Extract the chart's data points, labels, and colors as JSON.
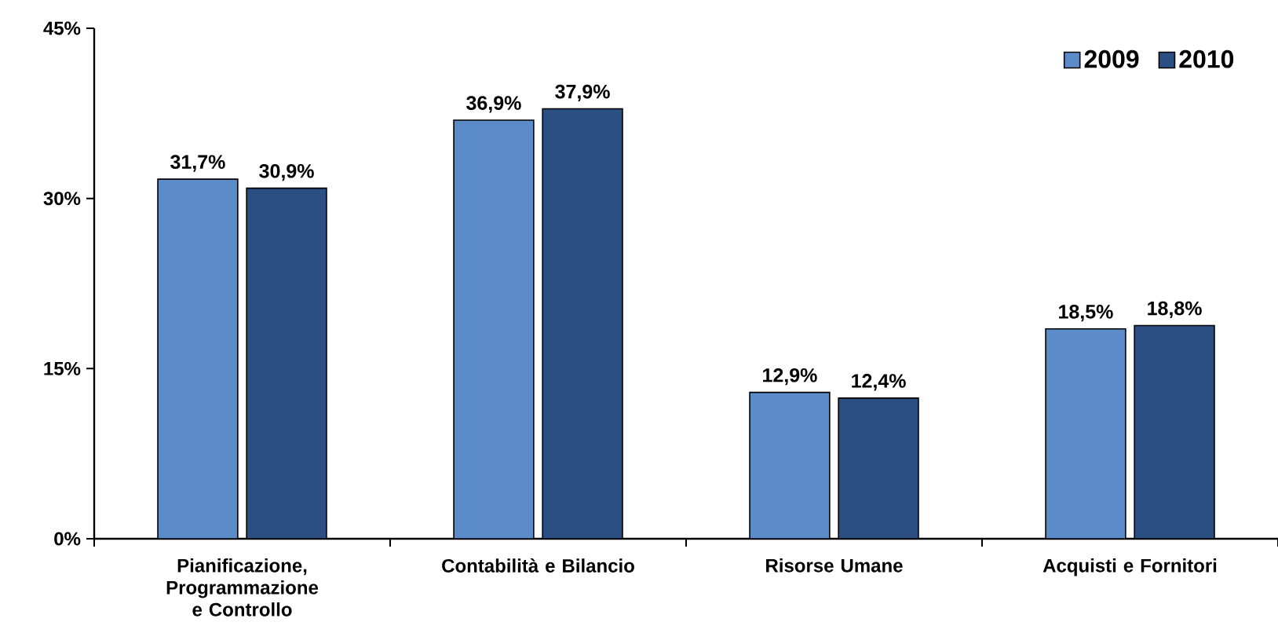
{
  "chart_data": {
    "type": "bar",
    "categories": [
      "Pianificazione, Programmazione e Controllo",
      "Contabilità e Bilancio",
      "Risorse Umane",
      "Acquisti e Fornitori"
    ],
    "series": [
      {
        "name": "2009",
        "color": "#5b8bc9",
        "values": [
          31.7,
          36.9,
          12.9,
          18.5
        ],
        "value_labels": [
          "31,7%",
          "36,9%",
          "12,9%",
          "18,5%"
        ]
      },
      {
        "name": "2010",
        "color": "#2c4f83",
        "values": [
          30.9,
          37.9,
          12.4,
          18.8
        ],
        "value_labels": [
          "30,9%",
          "37,9%",
          "12,4%",
          "18,8%"
        ]
      }
    ],
    "ylim": [
      0,
      45
    ],
    "yticks": [
      {
        "value": 0,
        "label": "0%"
      },
      {
        "value": 15,
        "label": "15%"
      },
      {
        "value": 30,
        "label": "30%"
      },
      {
        "value": 45,
        "label": "45%"
      }
    ],
    "legend": "top right",
    "grid": false
  }
}
